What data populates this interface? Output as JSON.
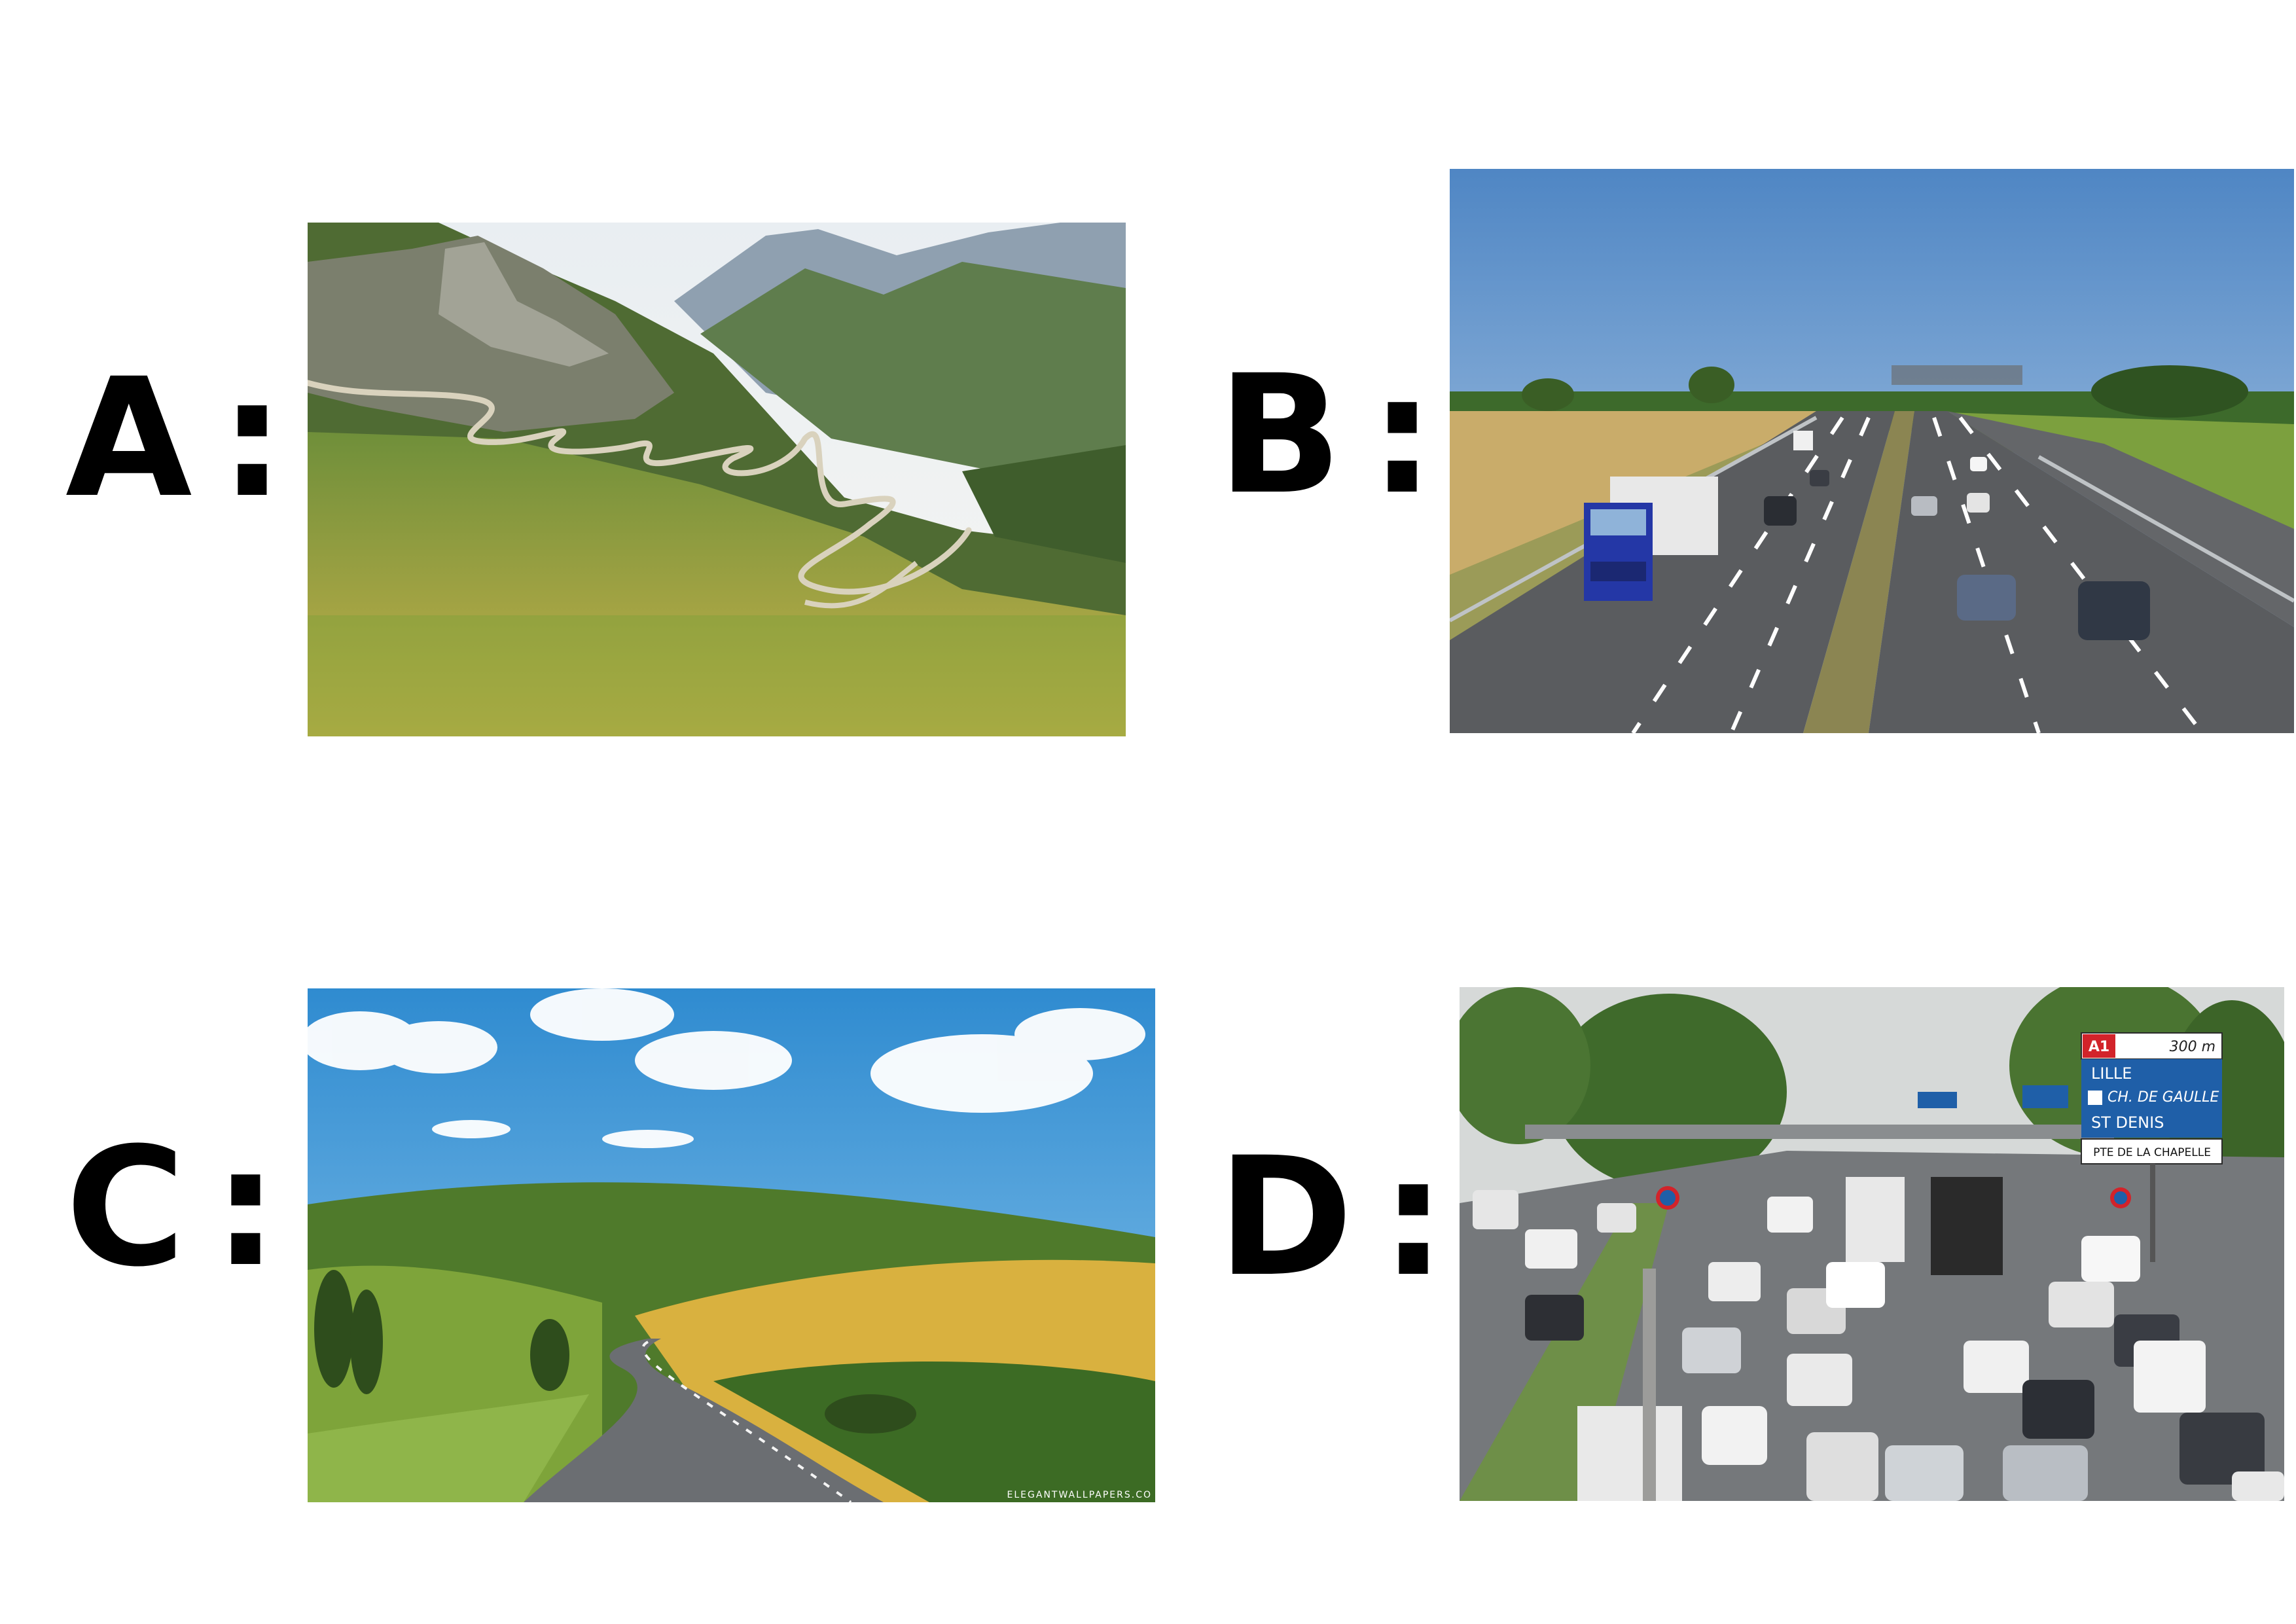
{
  "panels": [
    {
      "letter": "A",
      "separator": ":",
      "scene_icon": "mountain-switchback-road-icon"
    },
    {
      "letter": "B",
      "separator": ":",
      "scene_icon": "motorway-icon"
    },
    {
      "letter": "C",
      "separator": ":",
      "scene_icon": "country-road-icon"
    },
    {
      "letter": "D",
      "separator": ":",
      "scene_icon": "traffic-jam-icon"
    }
  ],
  "sign": {
    "road_code": "A1",
    "distance": "300 m",
    "line1": "LILLE",
    "line2": "CH. DE GAULLE",
    "line3": "ST DENIS",
    "line4": "PTE DE LA CHAPELLE"
  },
  "watermark": "ELEGANTWALLPAPERS.CO",
  "colors": {
    "label": "#000000",
    "background": "#ffffff",
    "sign_blue": "#1f5fa8",
    "truck_blue": "#2437a6"
  }
}
